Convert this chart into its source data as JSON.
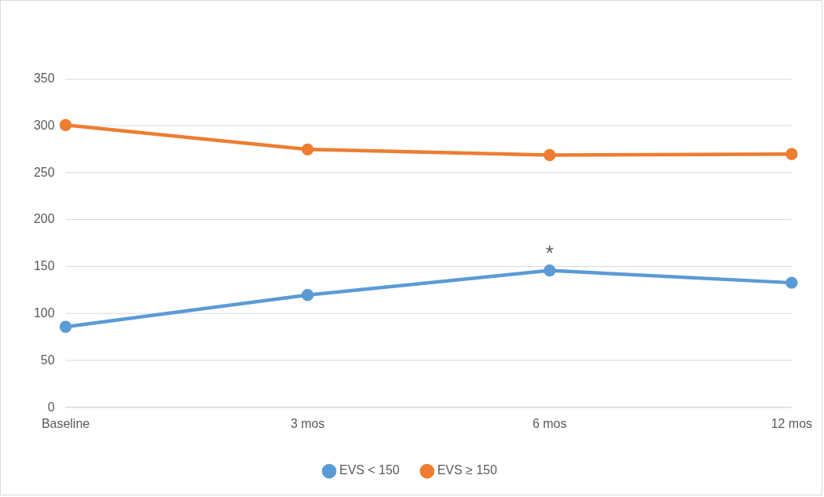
{
  "chart_data": {
    "type": "line",
    "categories": [
      "Baseline",
      "3 mos",
      "6 mos",
      "12 mos"
    ],
    "series": [
      {
        "name": "EVS < 150",
        "color": "#5b9bd5",
        "values": [
          86,
          120,
          146,
          133
        ]
      },
      {
        "name": "EVS ≥ 150",
        "color": "#ed7d31",
        "values": [
          301,
          275,
          269,
          270
        ]
      }
    ],
    "ylim": [
      0,
      350
    ],
    "yticks": [
      0,
      50,
      100,
      150,
      200,
      250,
      300,
      350
    ],
    "grid": "y",
    "legend": "bottom",
    "marker": "circle",
    "line_style": "solid",
    "annotations": [
      {
        "text": "*",
        "x": "6 mos",
        "y": 146
      }
    ]
  }
}
